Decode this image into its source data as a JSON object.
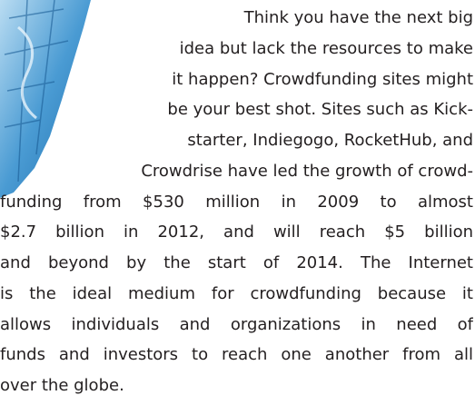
{
  "document": {
    "lines": [
      "Think you have the next big",
      "idea but lack the resources to make",
      "it happen? Crowdfunding sites might",
      "be your best shot. Sites such as Kick-",
      "starter, Indiegogo, RocketHub, and",
      "Crowdrise have led the growth of crowd-",
      "funding from $530 million in 2009 to almost",
      "$2.7 billion in 2012, and will reach $5 billion",
      "and beyond by the start of 2014. The Internet",
      "is the ideal medium for crowdfunding because it",
      "allows individuals and organizations in need of",
      "funds and investors to reach one another from all",
      "over the globe."
    ]
  }
}
